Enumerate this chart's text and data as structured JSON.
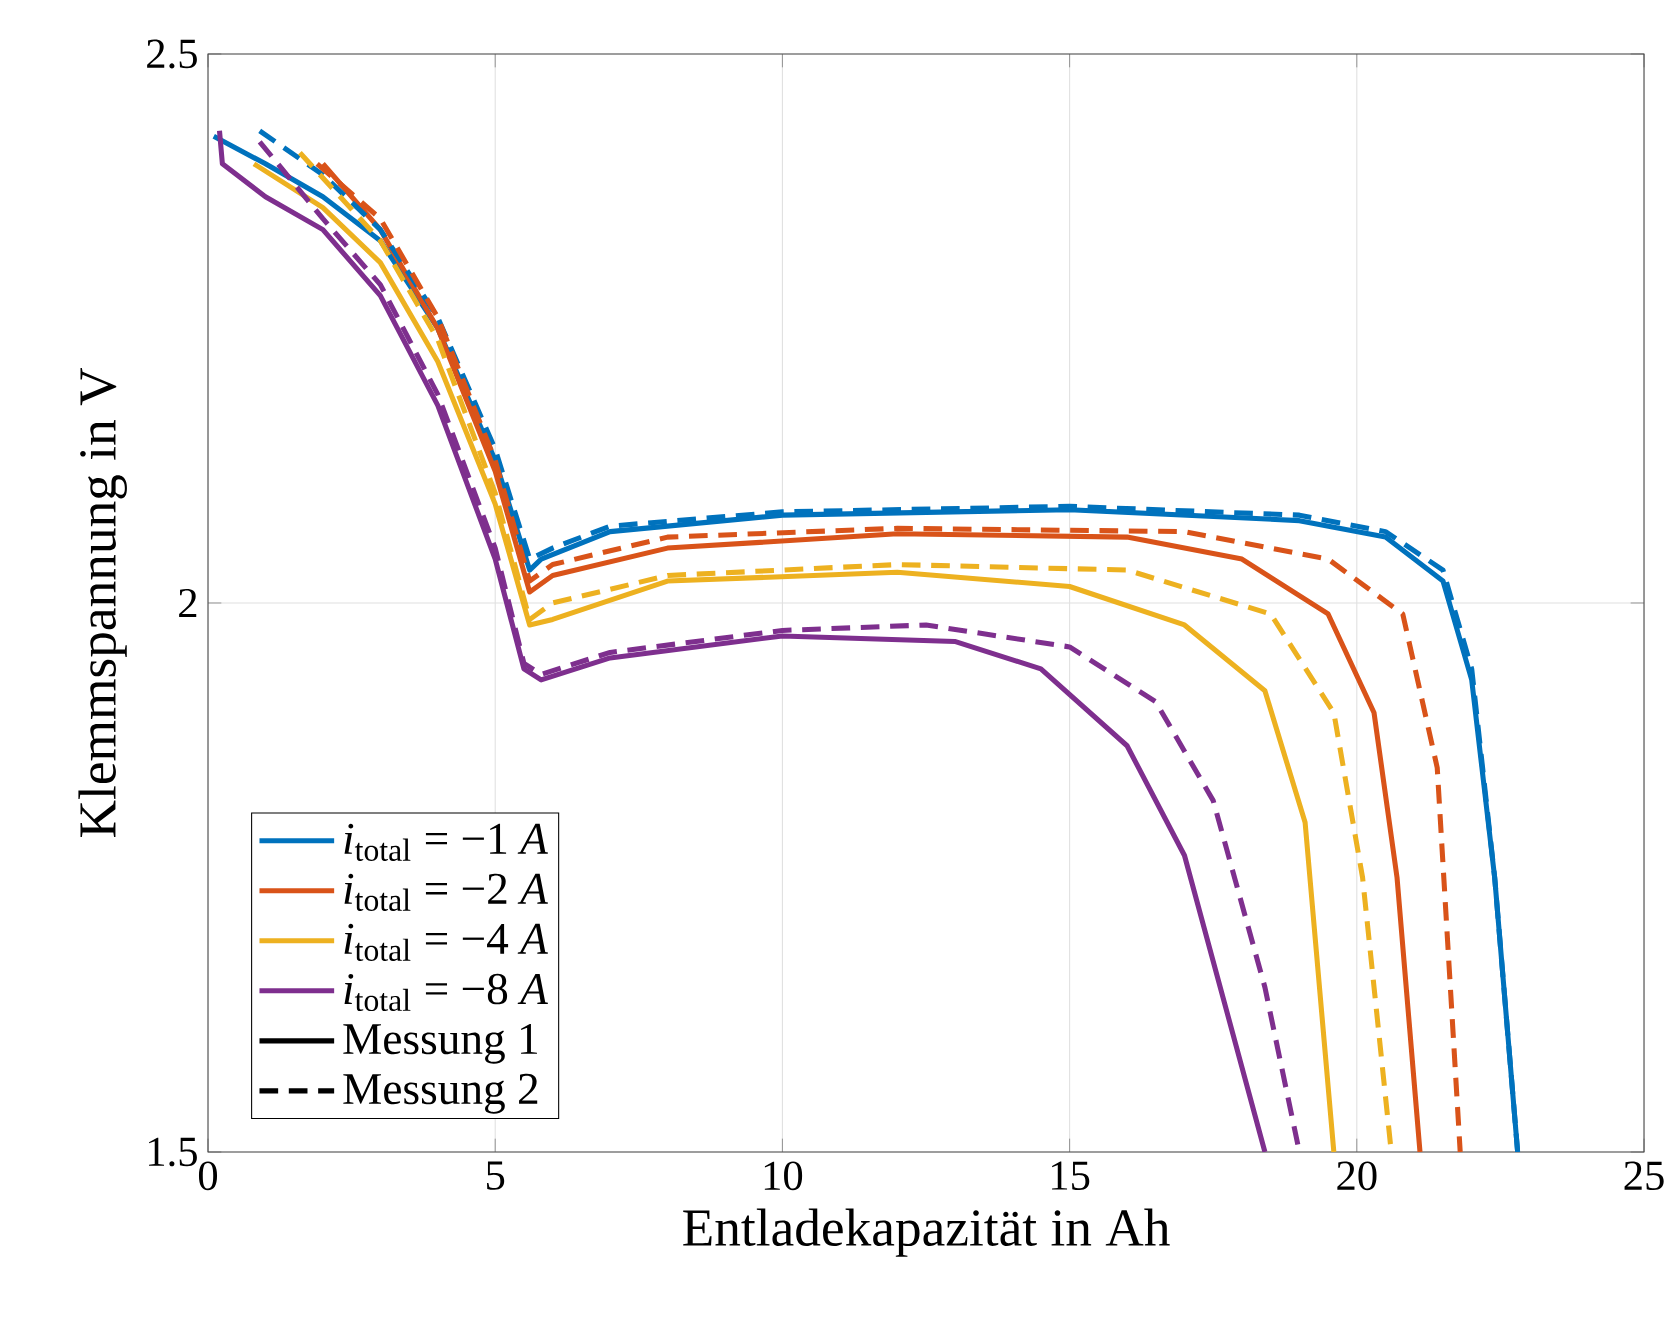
{
  "chart_data": {
    "type": "line",
    "xlabel": "Entladekapazität in Ah",
    "ylabel": "Klemmspannung in V",
    "xlim": [
      0,
      25
    ],
    "ylim": [
      1.5,
      2.5
    ],
    "xticks": [
      0,
      5,
      10,
      15,
      20,
      25
    ],
    "yticks": [
      1.5,
      2,
      2.5
    ],
    "grid": true,
    "legend": "bottom left",
    "series": [
      {
        "name": "*i*$_{total}$ = −1 *A*",
        "color": "#0072bd",
        "line_style": "solid",
        "x": [
          0.1,
          1,
          2,
          3,
          4,
          5,
          5.6,
          5.8,
          7,
          10,
          15,
          19,
          20.5,
          21.5,
          22,
          22.4,
          22.8
        ],
        "values": [
          2.425,
          2.4,
          2.37,
          2.33,
          2.25,
          2.13,
          2.03,
          2.04,
          2.065,
          2.08,
          2.085,
          2.075,
          2.06,
          2.02,
          1.93,
          1.75,
          1.5
        ]
      },
      {
        "name": "*i*$_{total}$ = −2 *A*",
        "color": "#d95319",
        "line_style": "solid",
        "x": [
          2,
          3,
          4,
          5,
          5.6,
          6,
          8,
          12,
          16,
          18,
          19.5,
          20.3,
          20.7,
          21.1
        ],
        "values": [
          2.4,
          2.34,
          2.25,
          2.12,
          2.01,
          2.025,
          2.05,
          2.063,
          2.06,
          2.04,
          1.99,
          1.9,
          1.75,
          1.5
        ]
      },
      {
        "name": "*i*$_{total}$ = −4 *A*",
        "color": "#edb120",
        "line_style": "solid",
        "x": [
          0.8,
          2,
          3,
          4,
          5,
          5.6,
          6,
          8,
          12,
          15,
          17,
          18.4,
          19.1,
          19.6
        ],
        "values": [
          2.4,
          2.36,
          2.31,
          2.22,
          2.09,
          1.98,
          1.985,
          2.02,
          2.028,
          2.015,
          1.98,
          1.92,
          1.8,
          1.5
        ]
      },
      {
        "name": "*i*$_{total}$ = −8 *A*",
        "color": "#7e2f8e",
        "line_style": "solid",
        "x": [
          0.2,
          0.25,
          1,
          2,
          3,
          4,
          5,
          5.5,
          5.8,
          7,
          10,
          13,
          14.5,
          16,
          17,
          18.4
        ],
        "values": [
          2.43,
          2.4,
          2.37,
          2.34,
          2.28,
          2.18,
          2.04,
          1.94,
          1.93,
          1.95,
          1.97,
          1.965,
          1.94,
          1.87,
          1.77,
          1.5
        ]
      },
      {
        "color": "#0072bd",
        "line_style": "dashed",
        "x": [
          0.9,
          2,
          3,
          4,
          5,
          5.6,
          6,
          7,
          10,
          15,
          19,
          20.5,
          21.5,
          22,
          22.4,
          22.8
        ],
        "values": [
          2.43,
          2.39,
          2.34,
          2.26,
          2.14,
          2.04,
          2.05,
          2.07,
          2.083,
          2.088,
          2.08,
          2.065,
          2.03,
          1.94,
          1.75,
          1.5
        ]
      },
      {
        "color": "#d95319",
        "line_style": "dashed",
        "x": [
          1.9,
          3,
          4,
          5,
          5.6,
          6,
          8,
          12,
          17,
          19.5,
          20.8,
          21.4,
          21.8
        ],
        "values": [
          2.4,
          2.35,
          2.26,
          2.13,
          2.02,
          2.035,
          2.06,
          2.068,
          2.065,
          2.04,
          1.99,
          1.85,
          1.5
        ]
      },
      {
        "color": "#edb120",
        "line_style": "dashed",
        "x": [
          1.6,
          3,
          4,
          5,
          5.6,
          6,
          8,
          12,
          16,
          18.5,
          19.6,
          20.1,
          20.6
        ],
        "values": [
          2.41,
          2.33,
          2.24,
          2.1,
          1.985,
          2.0,
          2.025,
          2.035,
          2.03,
          1.99,
          1.9,
          1.75,
          1.5
        ]
      },
      {
        "color": "#7e2f8e",
        "line_style": "dashed",
        "x": [
          0.9,
          2,
          3,
          4,
          5,
          5.5,
          5.8,
          7,
          10,
          12.5,
          15,
          16.5,
          17.5,
          18.4,
          19
        ],
        "values": [
          2.42,
          2.35,
          2.29,
          2.19,
          2.05,
          1.945,
          1.935,
          1.955,
          1.975,
          1.98,
          1.96,
          1.91,
          1.82,
          1.65,
          1.5
        ]
      },
      {
        "name": "Messung 1",
        "color": "#000000",
        "line_style": "solid"
      },
      {
        "name": "Messung 2",
        "color": "#000000",
        "line_style": "dashed"
      }
    ]
  }
}
